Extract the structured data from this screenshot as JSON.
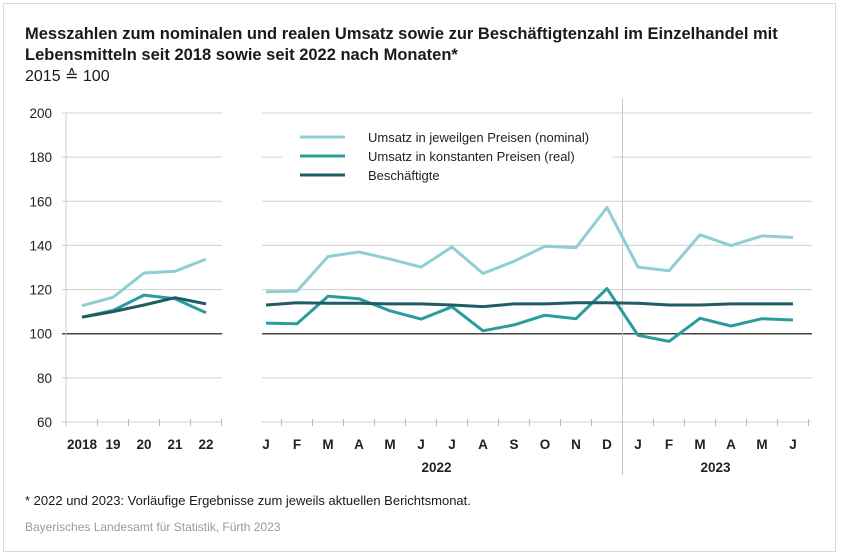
{
  "chart_data": {
    "type": "line",
    "title": "Messzahlen zum nominalen und realen Umsatz sowie zur Beschäftigtenzahl im Einzelhandel mit Lebensmitteln seit 2018 sowie seit 2022 nach Monaten*",
    "subtitle": "2015 ≙ 100",
    "ylim": [
      60,
      200
    ],
    "yticks": [
      60,
      80,
      100,
      120,
      140,
      160,
      180,
      200
    ],
    "reference_line": 100,
    "grid": true,
    "legend_position": "top-center",
    "colors": {
      "nominal": "#8dcfd3",
      "real": "#2b9c9e",
      "employed": "#1f5c63"
    },
    "annual": {
      "categories": [
        "2018",
        "19",
        "20",
        "21",
        "22"
      ],
      "series": [
        {
          "key": "nominal",
          "name": "Umsatz in jeweilgen Preisen (nominal)",
          "values": [
            112.7,
            116.5,
            127.5,
            128.3,
            133.8
          ]
        },
        {
          "key": "real",
          "name": "Umsatz in konstanten Preisen (real)",
          "values": [
            107.5,
            110.5,
            117.5,
            115.8,
            109.5
          ]
        },
        {
          "key": "employed",
          "name": "Beschäftigte",
          "values": [
            107.5,
            110.0,
            113.0,
            116.3,
            113.5
          ]
        }
      ]
    },
    "monthly": {
      "categories": [
        "J",
        "F",
        "M",
        "A",
        "M",
        "J",
        "J",
        "A",
        "S",
        "O",
        "N",
        "D",
        "J",
        "F",
        "M",
        "A",
        "M",
        "J"
      ],
      "year_groups": [
        {
          "label": "2022",
          "months": 12
        },
        {
          "label": "2023",
          "months": 6
        }
      ],
      "series": [
        {
          "key": "nominal",
          "name": "Umsatz in jeweilgen Preisen (nominal)",
          "values": [
            119.0,
            119.3,
            135.0,
            137.0,
            133.8,
            130.2,
            139.3,
            127.3,
            132.8,
            139.6,
            139.0,
            157.2,
            130.2,
            128.5,
            144.8,
            139.9,
            144.3,
            143.6
          ]
        },
        {
          "key": "real",
          "name": "Umsatz in konstanten Preisen (real)",
          "values": [
            104.8,
            104.5,
            117.0,
            115.8,
            110.4,
            106.6,
            112.2,
            101.3,
            104.0,
            108.4,
            106.8,
            120.5,
            99.3,
            96.5,
            107.0,
            103.5,
            106.8,
            106.2
          ]
        },
        {
          "key": "employed",
          "name": "Beschäftigte",
          "values": [
            113.0,
            114.0,
            113.8,
            113.8,
            113.5,
            113.5,
            113.0,
            112.3,
            113.5,
            113.5,
            114.0,
            114.0,
            113.8,
            113.0,
            113.0,
            113.5,
            113.5,
            113.5
          ]
        }
      ]
    },
    "legend": [
      {
        "key": "nominal",
        "label": "Umsatz in jeweilgen Preisen (nominal)"
      },
      {
        "key": "real",
        "label": "Umsatz in konstanten Preisen (real)"
      },
      {
        "key": "employed",
        "label": "Beschäftigte"
      }
    ]
  },
  "footnote": "* 2022 und 2023: Vorläufige Ergebnisse zum jeweils aktuellen Berichtsmonat.",
  "source": "Bayerisches Landesamt für Statistik, Fürth 2023"
}
